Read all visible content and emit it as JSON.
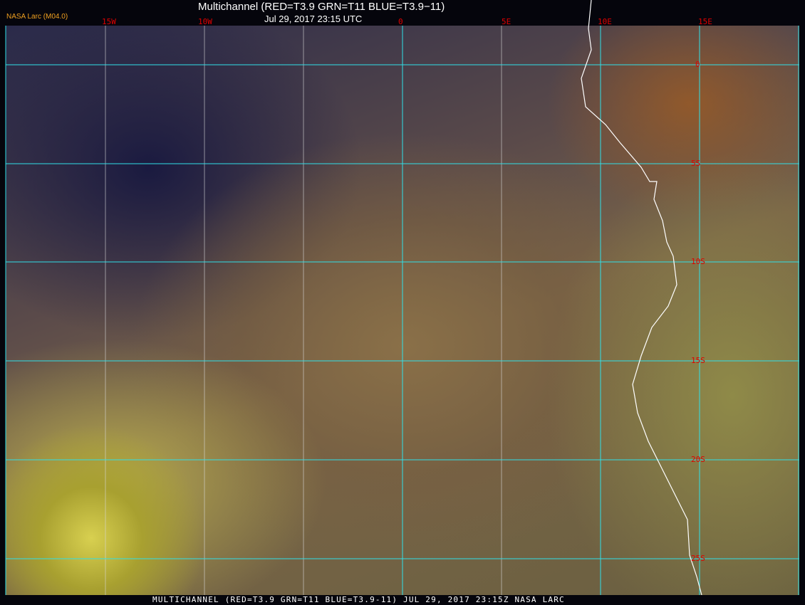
{
  "header": {
    "title": "Multichannel (RED=T3.9 GRN=T11 BLUE=T3.9−11)",
    "time": "Jul 29, 2017 23:15 UTC",
    "badge": "NASA Larc (M04.0)"
  },
  "longitude_labels": [
    "15W",
    "10W",
    "0",
    "5E",
    "10E",
    "15E"
  ],
  "latitude_labels": [
    "0",
    "5S",
    "10S",
    "15S",
    "20S",
    "25S"
  ],
  "footer": "MULTICHANNEL (RED=T3.9 GRN=T11 BLUE=T3.9-11) JUL 29, 2017 23:15Z  NASA LARC",
  "colors": {
    "grid": "#30e0e8",
    "labels": "#e00000",
    "coastline": "#ffffff",
    "badge": "#f0a020"
  }
}
